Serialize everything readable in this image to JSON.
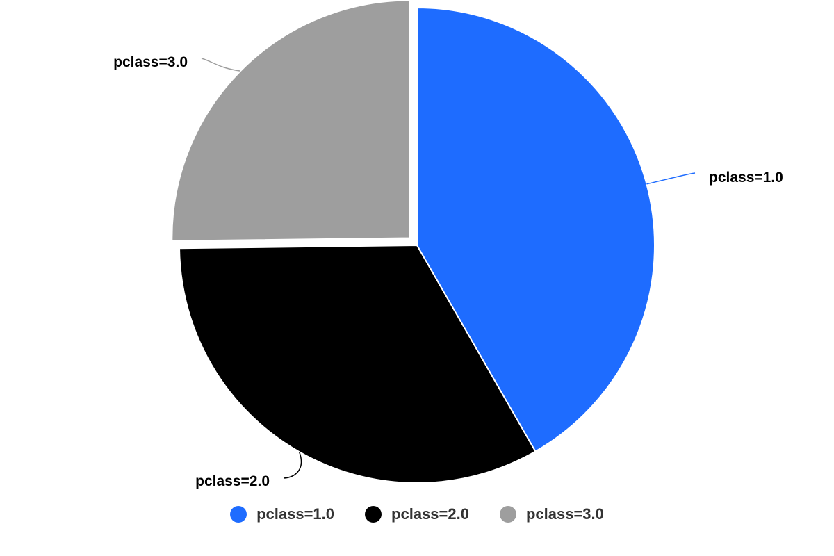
{
  "chart_data": {
    "type": "pie",
    "title": "",
    "slices": [
      {
        "name": "pclass=1.0",
        "value": 41.7,
        "color": "#1e6cff"
      },
      {
        "name": "pclass=2.0",
        "value": 33.1,
        "color": "#000000"
      },
      {
        "name": "pclass=3.0",
        "value": 25.2,
        "color": "#9e9e9e"
      }
    ],
    "exploded_slice": "pclass=3.0",
    "start_angle_deg": 0,
    "direction": "clockwise",
    "data_labels": "outside-with-connectors",
    "legend_position": "bottom-center"
  },
  "legend": {
    "items": [
      {
        "label": "pclass=1.0",
        "color": "#1e6cff"
      },
      {
        "label": "pclass=2.0",
        "color": "#000000"
      },
      {
        "label": "pclass=3.0",
        "color": "#9e9e9e"
      }
    ]
  }
}
